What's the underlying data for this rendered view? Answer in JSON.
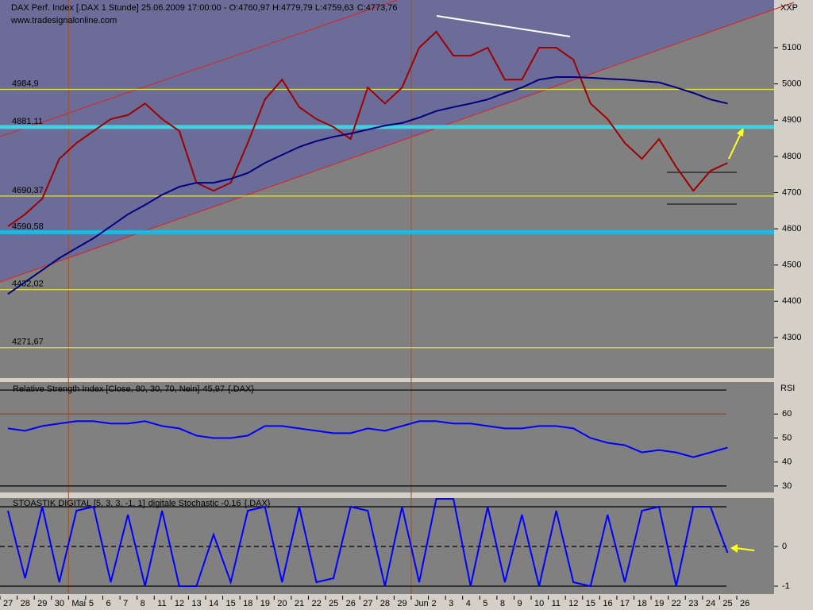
{
  "chart_data": [
    {
      "type": "line",
      "title": "DAX Perf. Index [.DAX  1 Stunde] 25.06.2009 17:00:00 - O:4760,97 H:4779,79 L:4759,63",
      "title_close": "C:4773,76",
      "source": "www.tradesignalonline.com",
      "axis_label": "XXP",
      "categories": [
        "27",
        "28",
        "29",
        "30",
        "Mai",
        "5",
        "6",
        "7",
        "8",
        "11",
        "12",
        "13",
        "14",
        "15",
        "18",
        "19",
        "20",
        "21",
        "22",
        "25",
        "26",
        "27",
        "28",
        "29",
        "Jun",
        "2",
        "3",
        "4",
        "5",
        "8",
        "9",
        "10",
        "11",
        "12",
        "15",
        "16",
        "17",
        "18",
        "19",
        "22",
        "23",
        "24",
        "25",
        "26"
      ],
      "series": [
        {
          "color": "#a00000",
          "values": [
            4607,
            4640,
            4683,
            4793,
            4837,
            4870,
            4903,
            4914,
            4946,
            4903,
            4870,
            4727,
            4705,
            4727,
            4837,
            4957,
            5012,
            4936,
            4903,
            4881,
            4848,
            4990,
            4946,
            4990,
            5100,
            5144,
            5078,
            5078,
            5100,
            5012,
            5012,
            5100,
            5100,
            5067,
            4946,
            4903,
            4837,
            4793,
            4848,
            4771,
            4705,
            4760,
            4782,
            null
          ]
        },
        {
          "color": "#000080",
          "values": [
            4420,
            4453,
            4486,
            4519,
            4547,
            4574,
            4607,
            4640,
            4666,
            4694,
            4716,
            4727,
            4727,
            4738,
            4754,
            4782,
            4804,
            4826,
            4842,
            4854,
            4863,
            4874,
            4885,
            4892,
            4907,
            4925,
            4936,
            4946,
            4957,
            4975,
            4990,
            5012,
            5019,
            5019,
            5017,
            5014,
            5012,
            5008,
            5004,
            4990,
            4975,
            4957,
            4946,
            null
          ]
        }
      ],
      "ylim": [
        4188,
        5225
      ],
      "yticks": [
        4300,
        4400,
        4500,
        4600,
        4700,
        4800,
        4900,
        5000,
        5100
      ],
      "levels": [
        {
          "value": 4984.9,
          "label": "4984,9",
          "color": "#e8e840"
        },
        {
          "value": 4881.11,
          "label": "4881,11",
          "color": "#40d0e0"
        },
        {
          "value": 4690.37,
          "label": "4690,37",
          "color": "#e8e840"
        },
        {
          "value": 4590.58,
          "label": "4590,58",
          "color": "#20b8e0"
        },
        {
          "value": 4432.02,
          "label": "4432,02",
          "color": "#e8e840"
        },
        {
          "value": 4271.67,
          "label": "4271,67",
          "color": "#e8e840"
        }
      ]
    },
    {
      "type": "line",
      "title": "Relative Strength Index [Close, 80, 30, 70, Nein]",
      "title_value": "45,97",
      "title_suffix": "{.DAX}",
      "axis_label": "RSI",
      "series": [
        {
          "color": "#0000ff",
          "values": [
            54,
            53,
            55,
            56,
            57,
            57,
            56,
            56,
            57,
            55,
            54,
            51,
            50,
            50,
            51,
            55,
            55,
            54,
            53,
            52,
            52,
            54,
            53,
            55,
            57,
            57,
            56,
            56,
            55,
            54,
            54,
            55,
            55,
            54,
            50,
            48,
            47,
            44,
            45,
            44,
            42,
            44,
            46,
            null
          ]
        }
      ],
      "ylim": [
        27.3,
        73
      ],
      "yticks": [
        30,
        40,
        50,
        60
      ],
      "levels": [
        {
          "value": 70,
          "color": "#000000"
        },
        {
          "value": 60,
          "color": "#a04020"
        },
        {
          "value": 30,
          "color": "#000000"
        }
      ]
    },
    {
      "type": "line",
      "title": "STOASTIK DIGITAL [5, 3, 3, -1, 1]",
      "title_value": "digitale Stochastic -0,16",
      "title_suffix": "{.DAX}",
      "series": [
        {
          "color": "#0000ff",
          "values": [
            0.9,
            -0.8,
            1,
            -0.9,
            0.9,
            1,
            -0.9,
            0.8,
            -1,
            0.9,
            -1,
            -1,
            0.3,
            -0.9,
            0.9,
            1,
            -0.9,
            1,
            -0.9,
            -0.8,
            1,
            0.9,
            -1,
            1,
            -0.9,
            1.2,
            1.2,
            -1,
            1,
            -0.9,
            0.8,
            -1,
            0.9,
            -0.9,
            -1,
            0.8,
            -0.9,
            0.9,
            1,
            -1,
            1,
            1,
            -0.16,
            null
          ]
        }
      ],
      "ylim": [
        -1.2,
        1.2
      ],
      "yticks": [
        0,
        -1
      ],
      "levels": [
        {
          "value": 1,
          "color": "#000000"
        },
        {
          "value": 0,
          "color": "#000000",
          "dashed": true
        },
        {
          "value": -1,
          "color": "#000000"
        }
      ]
    }
  ]
}
